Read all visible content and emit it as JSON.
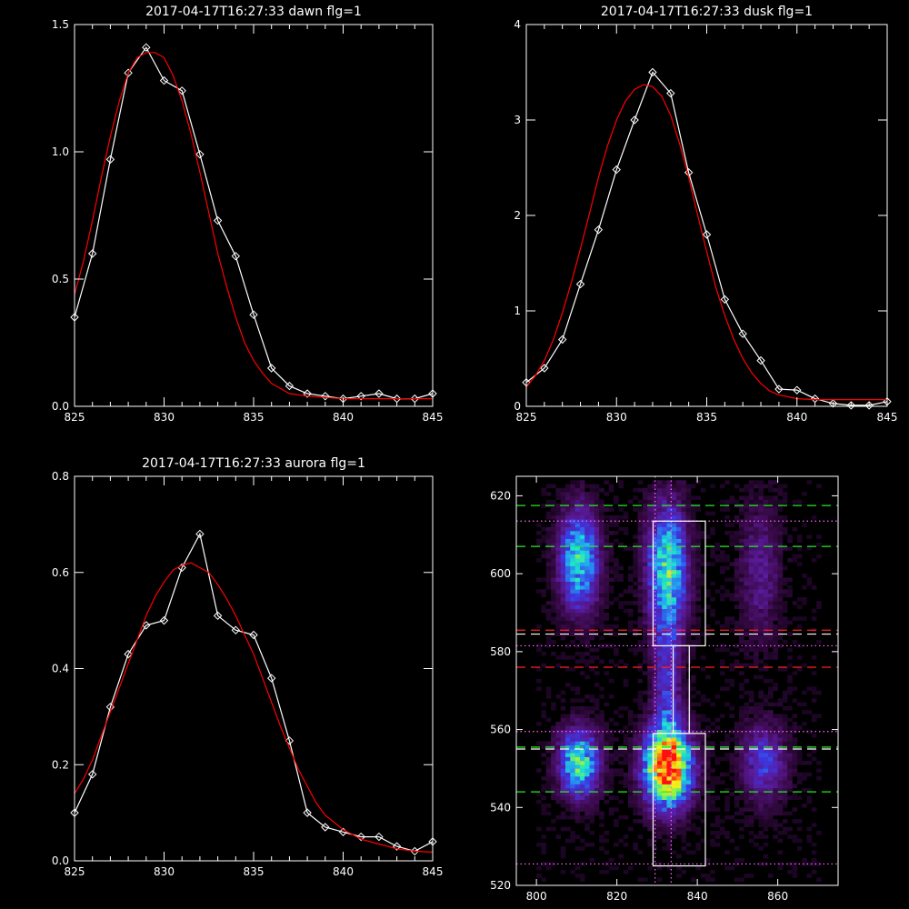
{
  "colors": {
    "background": "#000000",
    "axes": "#ffffff",
    "data_line": "#ffffff",
    "fit_line": "#ff0000",
    "green_dashed": "#22ee22",
    "red_dashed": "#ff2020",
    "white_dashed": "#ffffff",
    "magenta_dotted": "#ff66ff",
    "box": "#ffffff"
  },
  "chart_data": [
    {
      "type": "line",
      "title": "2017-04-17T16:27:33 dawn flg=1",
      "xlim": [
        825,
        845
      ],
      "ylim": [
        0,
        1.5
      ],
      "xticks": [
        "825",
        "830",
        "835",
        "840",
        "845"
      ],
      "xtick_values": [
        825,
        830,
        835,
        840,
        845
      ],
      "yticks": [
        "0.0",
        "0.5",
        "1.0",
        "1.5"
      ],
      "ytick_values": [
        0,
        0.5,
        1.0,
        1.5
      ],
      "series": [
        {
          "role": "data",
          "marker": "diamond",
          "x": [
            825,
            826,
            827,
            828,
            829,
            830,
            831,
            832,
            833,
            834,
            835,
            836,
            837,
            838,
            839,
            840,
            841,
            842,
            843,
            844,
            845
          ],
          "y": [
            0.35,
            0.6,
            0.97,
            1.31,
            1.41,
            1.28,
            1.24,
            0.99,
            0.73,
            0.59,
            0.36,
            0.15,
            0.08,
            0.05,
            0.04,
            0.03,
            0.04,
            0.05,
            0.03,
            0.03,
            0.05
          ]
        },
        {
          "role": "fit",
          "x": [
            825,
            825.5,
            826,
            826.5,
            827,
            827.5,
            828,
            828.5,
            829,
            829.5,
            830,
            830.5,
            831,
            831.5,
            832,
            832.5,
            833,
            833.5,
            834,
            834.5,
            835,
            835.5,
            836,
            836.5,
            837,
            838,
            839,
            840,
            841,
            842,
            843,
            844,
            845
          ],
          "y": [
            0.44,
            0.57,
            0.73,
            0.9,
            1.06,
            1.2,
            1.31,
            1.37,
            1.39,
            1.39,
            1.37,
            1.3,
            1.2,
            1.07,
            0.92,
            0.76,
            0.6,
            0.47,
            0.35,
            0.25,
            0.18,
            0.13,
            0.09,
            0.07,
            0.05,
            0.04,
            0.035,
            0.03,
            0.03,
            0.03,
            0.03,
            0.03,
            0.03
          ]
        }
      ]
    },
    {
      "type": "line",
      "title": "2017-04-17T16:27:33 dusk flg=1",
      "xlim": [
        825,
        845
      ],
      "ylim": [
        0,
        4
      ],
      "xticks": [
        "825",
        "830",
        "835",
        "840",
        "845"
      ],
      "xtick_values": [
        825,
        830,
        835,
        840,
        845
      ],
      "yticks": [
        "0",
        "1",
        "2",
        "3",
        "4"
      ],
      "ytick_values": [
        0,
        1,
        2,
        3,
        4
      ],
      "series": [
        {
          "role": "data",
          "marker": "diamond",
          "x": [
            825,
            826,
            827,
            828,
            829,
            830,
            831,
            832,
            833,
            834,
            835,
            836,
            837,
            838,
            839,
            840,
            841,
            842,
            843,
            844,
            845
          ],
          "y": [
            0.25,
            0.4,
            0.7,
            1.28,
            1.85,
            2.48,
            3.0,
            3.5,
            3.28,
            2.45,
            1.8,
            1.12,
            0.76,
            0.48,
            0.18,
            0.17,
            0.08,
            0.03,
            0.01,
            0.01,
            0.05
          ]
        },
        {
          "role": "fit",
          "x": [
            825,
            825.5,
            826,
            826.5,
            827,
            827.5,
            828,
            828.5,
            829,
            829.5,
            830,
            830.5,
            831,
            831.5,
            832,
            832.5,
            833,
            833.5,
            834,
            834.5,
            835,
            835.5,
            836,
            836.5,
            837,
            837.5,
            838,
            838.5,
            839,
            840,
            841,
            842,
            843,
            844,
            845
          ],
          "y": [
            0.2,
            0.32,
            0.48,
            0.7,
            0.98,
            1.3,
            1.65,
            2.02,
            2.4,
            2.73,
            3.0,
            3.2,
            3.32,
            3.37,
            3.35,
            3.25,
            3.05,
            2.75,
            2.4,
            2.0,
            1.62,
            1.25,
            0.95,
            0.7,
            0.5,
            0.35,
            0.24,
            0.16,
            0.12,
            0.08,
            0.07,
            0.07,
            0.07,
            0.07,
            0.07
          ]
        }
      ]
    },
    {
      "type": "line",
      "title": "2017-04-17T16:27:33 aurora flg=1",
      "xlim": [
        825,
        845
      ],
      "ylim": [
        0,
        0.8
      ],
      "xticks": [
        "825",
        "830",
        "835",
        "840",
        "845"
      ],
      "xtick_values": [
        825,
        830,
        835,
        840,
        845
      ],
      "yticks": [
        "0.0",
        "0.2",
        "0.4",
        "0.6",
        "0.8"
      ],
      "ytick_values": [
        0,
        0.2,
        0.4,
        0.6,
        0.8
      ],
      "series": [
        {
          "role": "data",
          "marker": "diamond",
          "x": [
            825,
            826,
            827,
            828,
            829,
            830,
            831,
            832,
            833,
            834,
            835,
            836,
            837,
            838,
            839,
            840,
            841,
            842,
            843,
            844,
            845
          ],
          "y": [
            0.1,
            0.18,
            0.32,
            0.43,
            0.49,
            0.5,
            0.61,
            0.68,
            0.51,
            0.48,
            0.47,
            0.38,
            0.25,
            0.1,
            0.07,
            0.06,
            0.05,
            0.05,
            0.03,
            0.02,
            0.04
          ]
        },
        {
          "role": "fit",
          "x": [
            825,
            825.5,
            826,
            826.5,
            827,
            827.5,
            828,
            828.5,
            829,
            829.5,
            830,
            830.5,
            831,
            831.5,
            832,
            832.5,
            833,
            833.5,
            834,
            834.5,
            835,
            835.5,
            836,
            836.5,
            837,
            837.5,
            838,
            838.5,
            839,
            840,
            841,
            842,
            843,
            844,
            845
          ],
          "y": [
            0.14,
            0.17,
            0.21,
            0.26,
            0.31,
            0.36,
            0.41,
            0.46,
            0.51,
            0.55,
            0.58,
            0.605,
            0.615,
            0.62,
            0.61,
            0.6,
            0.575,
            0.545,
            0.51,
            0.47,
            0.43,
            0.38,
            0.33,
            0.28,
            0.235,
            0.19,
            0.155,
            0.12,
            0.095,
            0.065,
            0.045,
            0.035,
            0.025,
            0.02,
            0.018
          ]
        }
      ]
    },
    {
      "type": "heatmap",
      "xlim": [
        795,
        875
      ],
      "ylim": [
        520,
        625
      ],
      "xticks": [
        "800",
        "820",
        "840",
        "860"
      ],
      "xtick_values": [
        800,
        820,
        840,
        860
      ],
      "yticks": [
        "520",
        "540",
        "560",
        "580",
        "600",
        "620"
      ],
      "ytick_values": [
        520,
        540,
        560,
        580,
        600,
        620
      ],
      "colorscale": [
        "#000000",
        "#3a0a4a",
        "#5a1a9a",
        "#3a3ae6",
        "#22a6f2",
        "#1ee6c8",
        "#8af04a",
        "#f6f01a",
        "#ff7a10",
        "#ff1010"
      ],
      "blobs": [
        {
          "x": 810,
          "y": 603,
          "sx": 3.5,
          "sy": 9,
          "amp": 0.5
        },
        {
          "x": 832,
          "y": 601,
          "sx": 3.5,
          "sy": 11,
          "amp": 0.55
        },
        {
          "x": 810,
          "y": 551,
          "sx": 3.5,
          "sy": 6,
          "amp": 0.55
        },
        {
          "x": 832,
          "y": 550,
          "sx": 4,
          "sy": 7,
          "amp": 0.95
        },
        {
          "x": 856,
          "y": 551,
          "sx": 4,
          "sy": 7,
          "amp": 0.28
        },
        {
          "x": 855,
          "y": 600,
          "sx": 3.5,
          "sy": 12,
          "amp": 0.18
        },
        {
          "x": 832,
          "y": 572,
          "sx": 2.5,
          "sy": 12,
          "amp": 0.25
        }
      ],
      "boxes": [
        {
          "x": [
            829,
            842
          ],
          "y": [
            581.5,
            613.5
          ]
        },
        {
          "x": [
            834,
            838
          ],
          "y": [
            559,
            581.5
          ]
        },
        {
          "x": [
            829,
            842
          ],
          "y": [
            525,
            559
          ]
        }
      ],
      "hlines": [
        {
          "y": 617.5,
          "color": "green_dashed",
          "style": "dashed"
        },
        {
          "y": 607,
          "color": "green_dashed",
          "style": "dashed"
        },
        {
          "y": 613.5,
          "color": "magenta_dotted",
          "style": "dotted"
        },
        {
          "y": 585.5,
          "color": "red_dashed",
          "style": "dashed"
        },
        {
          "y": 584.5,
          "color": "white_dashed",
          "style": "dashed"
        },
        {
          "y": 581.5,
          "color": "magenta_dotted",
          "style": "dotted"
        },
        {
          "y": 576,
          "color": "red_dashed",
          "style": "dashed"
        },
        {
          "y": 559.5,
          "color": "magenta_dotted",
          "style": "dotted"
        },
        {
          "y": 555.5,
          "color": "green_dashed",
          "style": "dashed"
        },
        {
          "y": 555,
          "color": "white_dashed",
          "style": "dashed"
        },
        {
          "y": 544,
          "color": "green_dashed",
          "style": "dashed"
        },
        {
          "y": 525.5,
          "color": "magenta_dotted",
          "style": "dotted"
        }
      ],
      "vlines": [
        {
          "x": 829.5,
          "color": "magenta_dotted",
          "style": "dotted"
        },
        {
          "x": 833.5,
          "color": "magenta_dotted",
          "style": "dotted"
        }
      ]
    }
  ]
}
